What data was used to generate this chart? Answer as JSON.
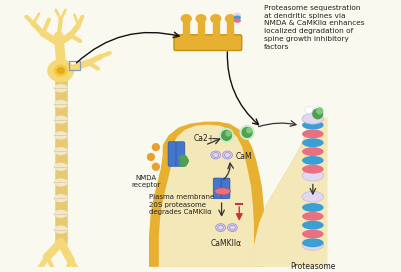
{
  "bg_color": "#faf9f0",
  "neuron_color": "#f5d878",
  "spine_color": "#e8b030",
  "dendrite_fill": "#f5e8b8",
  "dendrite_border": "#e8b030",
  "text_color": "#222222",
  "text_annotation": "Proteasome sequestration\nat dendritic spines via\nNMDA & CaMKIIα enhances\nlocalized degradation of\nspine growth inhibitory\nfactors",
  "label_ca2": "Ca2+",
  "label_cam": "CaM",
  "label_nmda": "NMDA\nreceptor",
  "label_plasma": "Plasma membrane\n20S proteasome\ndegrades CaMKIIα",
  "label_camkii": "CaMKIIα",
  "label_proteasome": "Proteasome",
  "prot_blue": "#3a9fd4",
  "prot_pink": "#e87080",
  "prot_cap": "#e0d8f0",
  "cam_fill": "#ddd8ee",
  "nmda_blue": "#4477cc",
  "green_mol": "#50a050",
  "green_light": "#80c880",
  "orange_dot": "#e8a030",
  "arrow_color": "#333333",
  "red_arrow": "#cc3333",
  "axon_color": "#e8c870",
  "myelin_color": "#f0e8c8",
  "highlight_box": "#8899bb"
}
